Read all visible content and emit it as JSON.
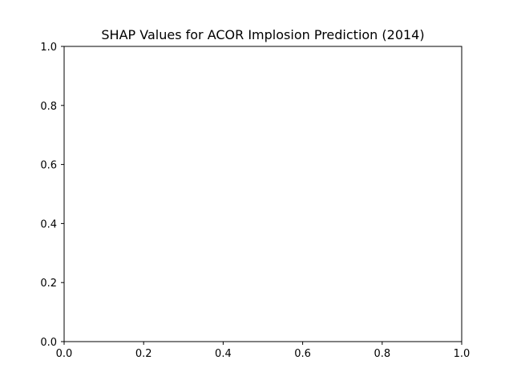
{
  "chart_data": {
    "type": "scatter",
    "title": "SHAP Values for ACOR Implosion Prediction (2014)",
    "xlabel": "",
    "ylabel": "",
    "xlim": [
      0.0,
      1.0
    ],
    "ylim": [
      0.0,
      1.0
    ],
    "x_ticks": [
      "0.0",
      "0.2",
      "0.4",
      "0.6",
      "0.8",
      "1.0"
    ],
    "y_ticks": [
      "0.0",
      "0.2",
      "0.4",
      "0.6",
      "0.8",
      "1.0"
    ],
    "grid": false,
    "series": []
  }
}
